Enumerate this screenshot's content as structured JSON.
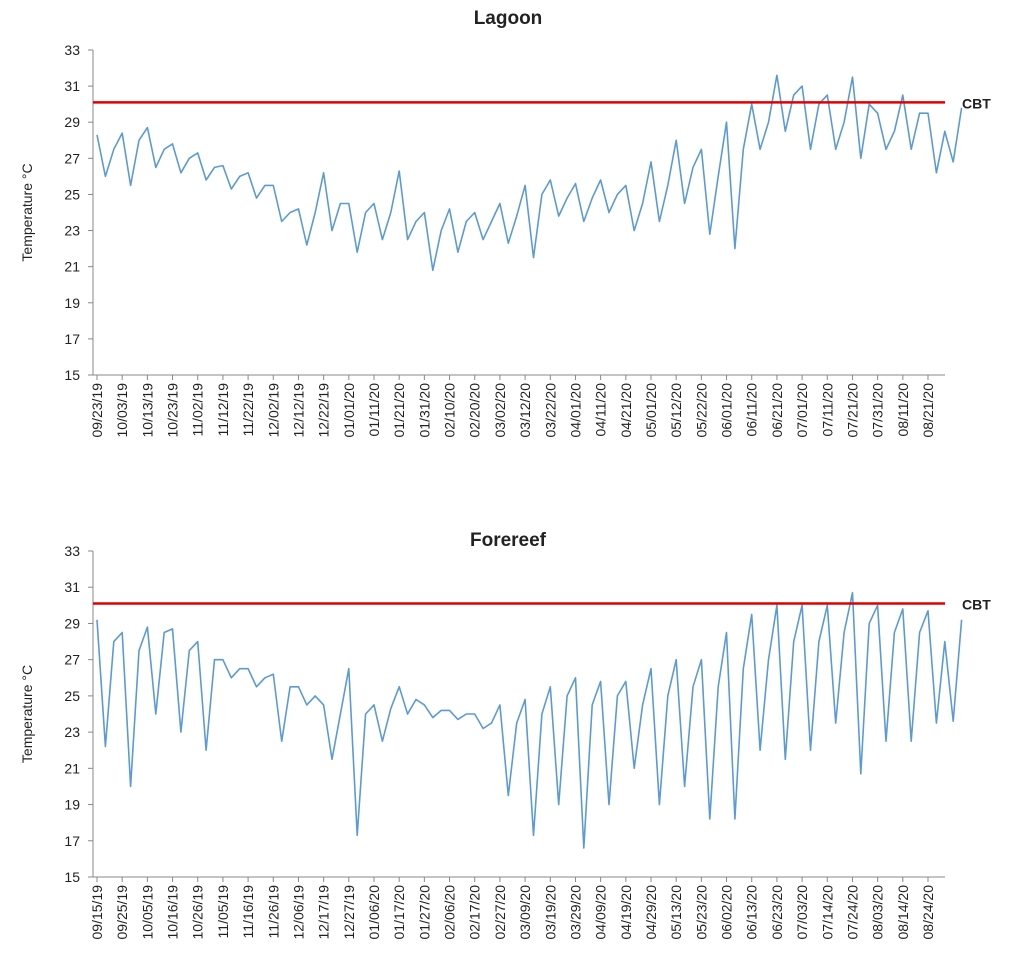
{
  "chart_data": [
    {
      "type": "line",
      "title": "Lagoon",
      "y_label": "Temperature °C",
      "categories": [
        "09/23/19",
        null,
        null,
        "10/03/19",
        null,
        null,
        "10/13/19",
        null,
        null,
        "10/23/19",
        null,
        null,
        "11/02/19",
        null,
        null,
        "11/12/19",
        null,
        null,
        "11/22/19",
        null,
        null,
        "12/02/19",
        null,
        null,
        "12/12/19",
        null,
        null,
        "12/22/19",
        null,
        null,
        "01/01/20",
        null,
        null,
        "01/11/20",
        null,
        null,
        "01/21/20",
        null,
        null,
        "01/31/20",
        null,
        null,
        "02/10/20",
        null,
        null,
        "02/20/20",
        null,
        null,
        "03/02/20",
        null,
        null,
        "03/12/20",
        null,
        null,
        "03/22/20",
        null,
        null,
        "04/01/20",
        null,
        null,
        "04/11/20",
        null,
        null,
        "04/21/20",
        null,
        null,
        "05/01/20",
        null,
        null,
        "05/12/20",
        null,
        null,
        "05/22/20",
        null,
        null,
        "06/01/20",
        null,
        null,
        "06/11/20",
        null,
        null,
        "06/21/20",
        null,
        null,
        "07/01/20",
        null,
        null,
        "07/11/20",
        null,
        null,
        "07/21/20",
        null,
        null,
        "07/31/20",
        null,
        null,
        "08/11/20",
        null,
        null,
        "08/21/20",
        null,
        null,
        null,
        null
      ],
      "series": [
        {
          "color": "#5b9bd5",
          "values": [
            28.3,
            26,
            27.5,
            28.4,
            25.5,
            28,
            28.7,
            26.5,
            27.5,
            27.8,
            26.2,
            27,
            27.3,
            25.8,
            26.5,
            26.6,
            25.3,
            26,
            26.2,
            24.8,
            25.5,
            25.5,
            23.5,
            24,
            24.2,
            22.2,
            24,
            26.2,
            23,
            24.5,
            24.5,
            21.8,
            24,
            24.5,
            22.5,
            24,
            26.3,
            22.5,
            23.5,
            24,
            20.8,
            23,
            24.2,
            21.8,
            23.5,
            24,
            22.5,
            23.5,
            24.5,
            22.3,
            23.8,
            25.5,
            21.5,
            25,
            25.8,
            23.8,
            24.8,
            25.6,
            23.5,
            24.8,
            25.8,
            24,
            25,
            25.5,
            23,
            24.5,
            26.8,
            23.5,
            25.5,
            28,
            24.5,
            26.5,
            27.5,
            22.8,
            26,
            29,
            22,
            27.5,
            30,
            27.5,
            29,
            31.6,
            28.5,
            30.5,
            31,
            27.5,
            30,
            30.5,
            27.5,
            29,
            31.5,
            27,
            30,
            29.5,
            27.5,
            28.5,
            30.5,
            27.5,
            29.5,
            29.5,
            26.2,
            28.5,
            26.8,
            29.8
          ]
        }
      ],
      "threshold": {
        "label": "CBT",
        "value": 30.1,
        "color": "#e00000"
      },
      "ylim": [
        15,
        33
      ],
      "yticks": [
        15,
        17,
        19,
        21,
        23,
        25,
        27,
        29,
        31,
        33
      ]
    },
    {
      "type": "line",
      "title": "Forereef",
      "y_label": "Temperature °C",
      "categories": [
        "09/15/19",
        null,
        null,
        "09/25/19",
        null,
        null,
        "10/05/19",
        null,
        null,
        "10/16/19",
        null,
        null,
        "10/26/19",
        null,
        null,
        "11/05/19",
        null,
        null,
        "11/16/19",
        null,
        null,
        "11/26/19",
        null,
        null,
        "12/06/19",
        null,
        null,
        "12/17/19",
        null,
        null,
        "12/27/19",
        null,
        null,
        "01/06/20",
        null,
        null,
        "01/17/20",
        null,
        null,
        "01/27/20",
        null,
        null,
        "02/06/20",
        null,
        null,
        "02/17/20",
        null,
        null,
        "02/27/20",
        null,
        null,
        "03/09/20",
        null,
        null,
        "03/19/20",
        null,
        null,
        "03/29/20",
        null,
        null,
        "04/09/20",
        null,
        null,
        "04/19/20",
        null,
        null,
        "04/29/20",
        null,
        null,
        "05/13/20",
        null,
        null,
        "05/23/20",
        null,
        null,
        "06/02/20",
        null,
        null,
        "06/13/20",
        null,
        null,
        "06/23/20",
        null,
        null,
        "07/03/20",
        null,
        null,
        "07/14/20",
        null,
        null,
        "07/24/20",
        null,
        null,
        "08/03/20",
        null,
        null,
        "08/14/20",
        null,
        null,
        "08/24/20",
        null,
        null,
        null,
        null
      ],
      "series": [
        {
          "color": "#5b9bd5",
          "values": [
            29.2,
            22.2,
            28,
            28.5,
            20,
            27.5,
            28.8,
            24,
            28.5,
            28.7,
            23,
            27.5,
            28,
            22,
            27,
            27,
            26,
            26.5,
            26.5,
            25.5,
            26,
            26.2,
            22.5,
            25.5,
            25.5,
            24.5,
            25,
            24.5,
            21.5,
            24,
            26.5,
            17.3,
            24,
            24.5,
            22.5,
            24.3,
            25.5,
            24,
            24.8,
            24.5,
            23.8,
            24.2,
            24.2,
            23.7,
            24,
            24,
            23.2,
            23.5,
            24.5,
            19.5,
            23.5,
            24.8,
            17.3,
            24,
            25.5,
            19,
            25,
            26,
            16.6,
            24.5,
            25.8,
            19,
            25,
            25.8,
            21,
            24.5,
            26.5,
            19,
            25,
            27,
            20,
            25.5,
            27,
            18.2,
            25.5,
            28.5,
            18.2,
            26.5,
            29.5,
            22,
            27,
            30,
            21.5,
            28,
            30,
            22,
            28,
            30,
            23.5,
            28.5,
            30.7,
            20.7,
            29,
            30,
            22.5,
            28.5,
            29.8,
            22.5,
            28.5,
            29.7,
            23.5,
            28,
            23.6,
            29.2
          ]
        }
      ],
      "threshold": {
        "label": "CBT",
        "value": 30.1,
        "color": "#e00000"
      },
      "ylim": [
        15,
        33
      ],
      "yticks": [
        15,
        17,
        19,
        21,
        23,
        25,
        27,
        29,
        31,
        33
      ]
    }
  ]
}
